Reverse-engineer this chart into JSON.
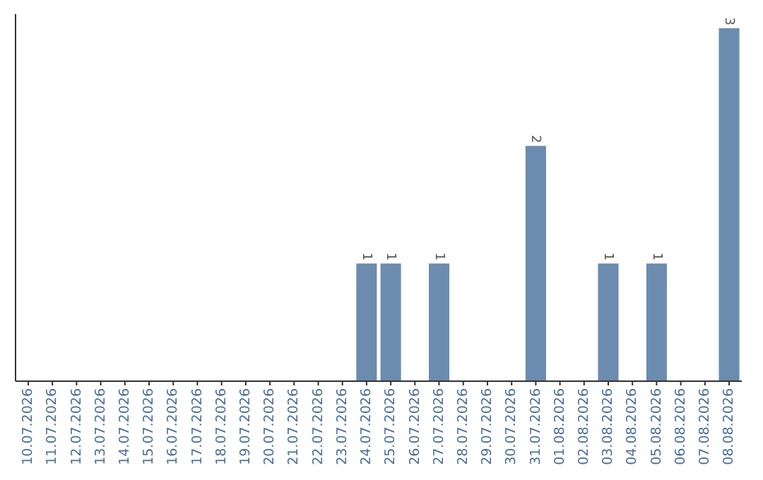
{
  "chart_data": {
    "type": "bar",
    "categories": [
      "10.07.2026",
      "11.07.2026",
      "12.07.2026",
      "13.07.2026",
      "14.07.2026",
      "15.07.2026",
      "16.07.2026",
      "17.07.2026",
      "18.07.2026",
      "19.07.2026",
      "20.07.2026",
      "21.07.2026",
      "22.07.2026",
      "23.07.2026",
      "24.07.2026",
      "25.07.2026",
      "26.07.2026",
      "27.07.2026",
      "28.07.2026",
      "29.07.2026",
      "30.07.2026",
      "31.07.2026",
      "01.08.2026",
      "02.08.2026",
      "03.08.2026",
      "04.08.2026",
      "05.08.2026",
      "06.08.2026",
      "07.08.2026",
      "08.08.2026"
    ],
    "values": [
      null,
      null,
      null,
      null,
      null,
      null,
      null,
      null,
      null,
      null,
      null,
      null,
      null,
      null,
      1,
      1,
      null,
      1,
      null,
      null,
      null,
      2,
      null,
      null,
      1,
      null,
      1,
      null,
      null,
      3
    ],
    "value_labels": [
      null,
      null,
      null,
      null,
      null,
      null,
      null,
      null,
      null,
      null,
      null,
      null,
      null,
      null,
      "1",
      "1",
      null,
      "1",
      null,
      null,
      null,
      "2",
      null,
      null,
      "1",
      null,
      "1",
      null,
      null,
      "3"
    ],
    "color": "#6b8cae"
  }
}
